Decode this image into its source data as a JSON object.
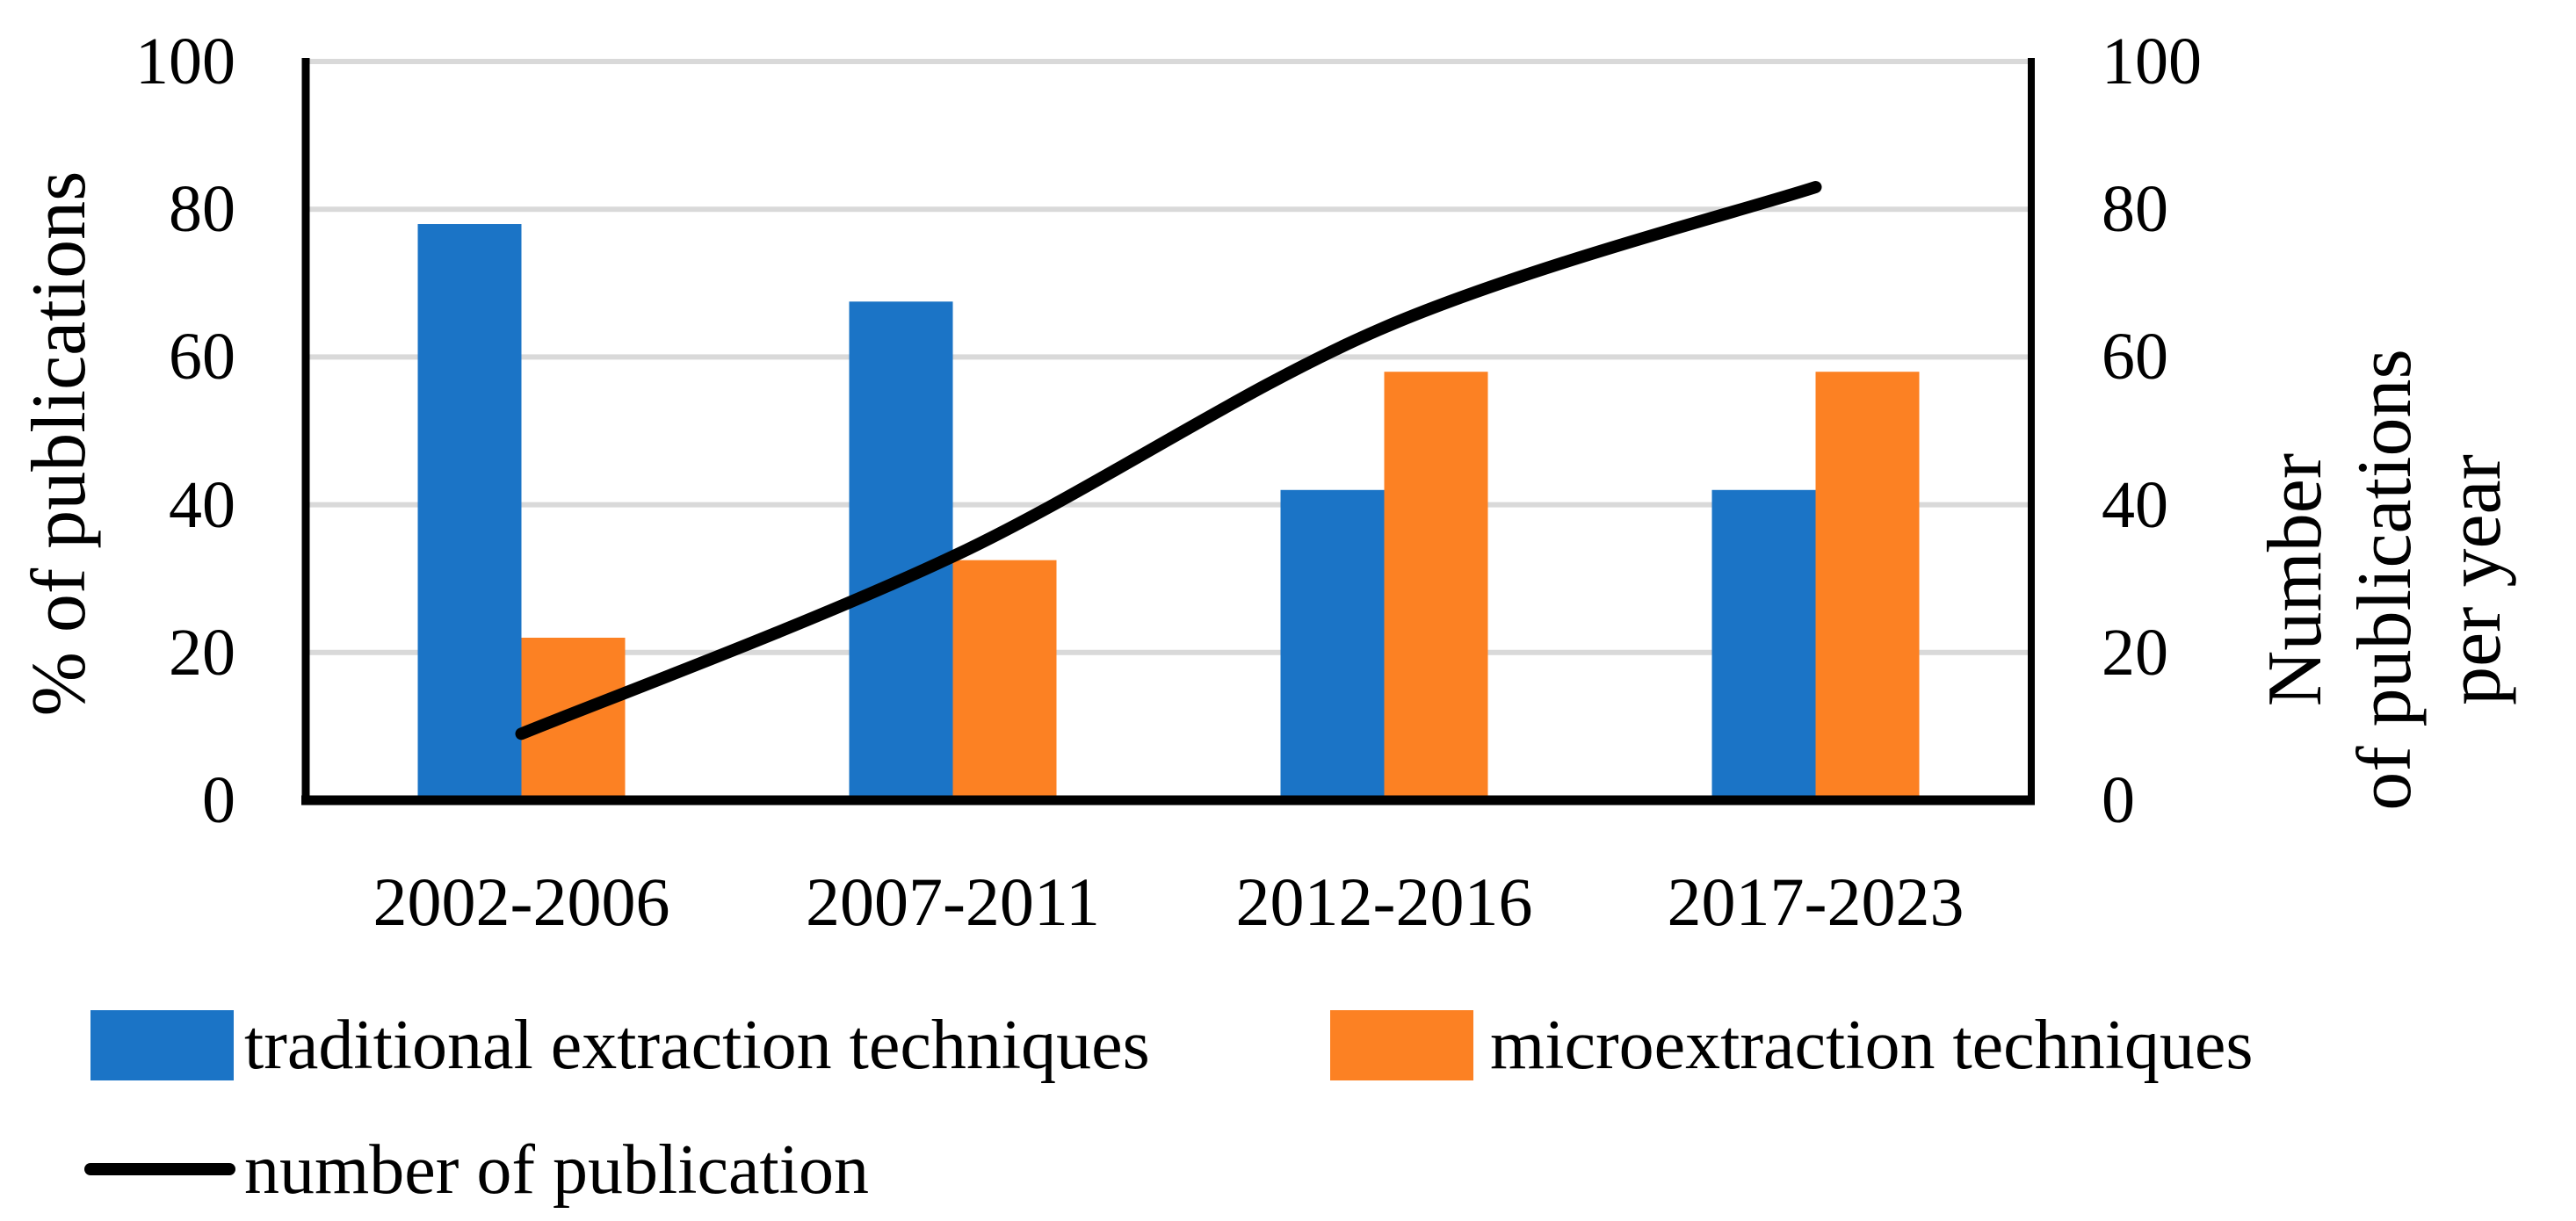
{
  "figure": {
    "left_axis_title": "% of publications",
    "right_axis_title_lines": [
      "Number",
      "of publications",
      "per year"
    ],
    "legend": {
      "traditional_label": "traditional extraction techniques",
      "micro_label": "microextraction techniques",
      "line_label": "number of publication"
    }
  },
  "chart_data": {
    "type": "bar+line combo",
    "categories": [
      "2002-2006",
      "2007-2011",
      "2012-2016",
      "2017-2023"
    ],
    "bar_series": [
      {
        "name": "traditional extraction techniques",
        "color": "#1B74C6",
        "axis": "left",
        "values": [
          78,
          67.5,
          42,
          42
        ]
      },
      {
        "name": "microextraction techniques",
        "color": "#FC8123",
        "axis": "left",
        "values": [
          22,
          32.5,
          58,
          58
        ]
      }
    ],
    "line_series": {
      "name": "number of publication",
      "color": "#000000",
      "axis": "right",
      "values": [
        9,
        33,
        64,
        83
      ],
      "smooth": true
    },
    "left_axis": {
      "label": "% of publications",
      "ticks": [
        100,
        80,
        60,
        40,
        20,
        0
      ],
      "range": [
        0,
        100
      ]
    },
    "right_axis": {
      "label": "Number of publications per year",
      "ticks": [
        100,
        80,
        60,
        40,
        20,
        0
      ],
      "range": [
        0,
        100
      ]
    },
    "grid": true,
    "gridline_color": "#D9D9D9",
    "legend_position": "bottom-left"
  }
}
